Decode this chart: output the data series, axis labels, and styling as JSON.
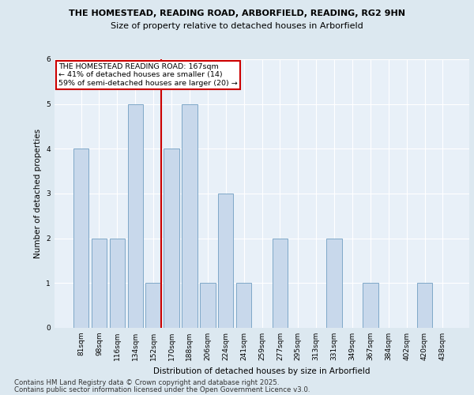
{
  "title1": "THE HOMESTEAD, READING ROAD, ARBORFIELD, READING, RG2 9HN",
  "title2": "Size of property relative to detached houses in Arborfield",
  "xlabel": "Distribution of detached houses by size in Arborfield",
  "ylabel": "Number of detached properties",
  "categories": [
    "81sqm",
    "98sqm",
    "116sqm",
    "134sqm",
    "152sqm",
    "170sqm",
    "188sqm",
    "206sqm",
    "224sqm",
    "241sqm",
    "259sqm",
    "277sqm",
    "295sqm",
    "313sqm",
    "331sqm",
    "349sqm",
    "367sqm",
    "384sqm",
    "402sqm",
    "420sqm",
    "438sqm"
  ],
  "values": [
    4,
    2,
    2,
    5,
    1,
    4,
    5,
    1,
    3,
    1,
    0,
    2,
    0,
    0,
    2,
    0,
    1,
    0,
    0,
    1,
    0
  ],
  "bar_color": "#c8d8eb",
  "bar_edge_color": "#7fa8c8",
  "highlight_index": 4,
  "highlight_line_color": "#cc0000",
  "annotation_text": "THE HOMESTEAD READING ROAD: 167sqm\n← 41% of detached houses are smaller (14)\n59% of semi-detached houses are larger (20) →",
  "annotation_box_color": "#ffffff",
  "annotation_box_edge": "#cc0000",
  "ylim": [
    0,
    6
  ],
  "yticks": [
    0,
    1,
    2,
    3,
    4,
    5,
    6
  ],
  "footer1": "Contains HM Land Registry data © Crown copyright and database right 2025.",
  "footer2": "Contains public sector information licensed under the Open Government Licence v3.0.",
  "bg_color": "#dce8f0",
  "plot_bg_color": "#e8f0f8"
}
